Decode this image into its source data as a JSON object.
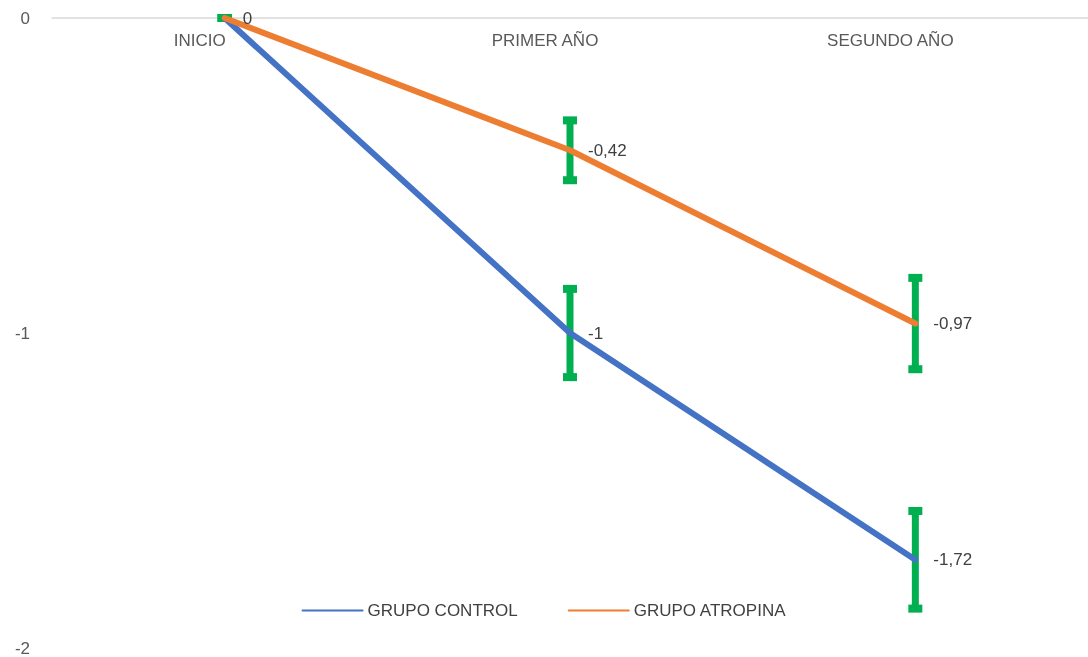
{
  "chart_data": {
    "type": "line",
    "categories": [
      "INICIO",
      "PRIMER AÑO",
      "SEGUNDO AÑO"
    ],
    "series": [
      {
        "name": "GRUPO CONTROL",
        "color": "#4472c4",
        "values": [
          0,
          -1,
          -1.72
        ],
        "errors": [
          0,
          0.14,
          0.155
        ],
        "value_labels": [
          null,
          "-1",
          "-1,72"
        ]
      },
      {
        "name": "GRUPO ATROPINA",
        "color": "#ed7d31",
        "values": [
          0,
          -0.42,
          -0.97
        ],
        "errors": [
          0,
          0.095,
          0.145
        ],
        "value_labels": [
          "0",
          "-0,42",
          "-0,97"
        ]
      }
    ],
    "ylim": [
      -2,
      0
    ],
    "yticks": [
      -2,
      -1,
      0
    ],
    "grid": false,
    "legend": "bottom",
    "marker": "none",
    "line_style": "solid"
  }
}
